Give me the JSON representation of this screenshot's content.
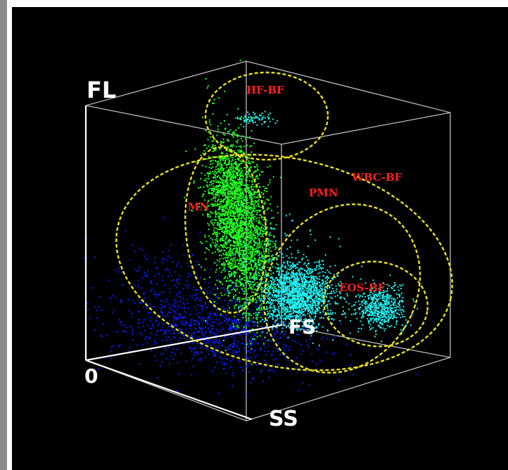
{
  "chart_data": {
    "type": "scatter",
    "axis_labels": {
      "vertical": "FL",
      "origin": "0",
      "depth": "SS",
      "horizontal": "FS"
    },
    "gates": [
      {
        "name": "HF-BF"
      },
      {
        "name": "WBC-BF"
      },
      {
        "name": "MN"
      },
      {
        "name": "PMN"
      },
      {
        "name": "EOS-BF"
      }
    ],
    "populations": [
      {
        "color": "#0a1eff"
      },
      {
        "color": "#20ff20"
      },
      {
        "color": "#22f0f0"
      },
      {
        "color": "#22f0f0"
      },
      {
        "color": "#22f0f0"
      }
    ],
    "colors": {
      "background": "#000000",
      "box": "#bdbdbd",
      "gate": "#e8e020",
      "gate_label": "#ff2020"
    }
  }
}
